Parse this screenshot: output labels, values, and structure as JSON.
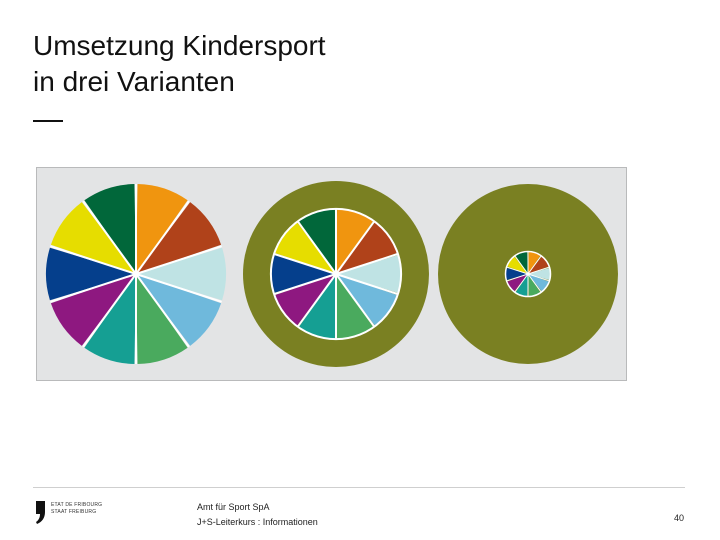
{
  "slide": {
    "title_line1": "Umsetzung Kindersport",
    "title_line2": "in drei Varianten"
  },
  "diagram": {
    "background_color": "#e3e4e5",
    "ring_color": "#7a8022",
    "segment_colors": [
      "#f0950f",
      "#b0421a",
      "#bfe3e4",
      "#6fb9dc",
      "#4aaa5e",
      "#159f93",
      "#8e1880",
      "#053f8c",
      "#e6dd00",
      "#01673a"
    ],
    "wheels": [
      {
        "name": "variant-full",
        "segments": 10,
        "inner_ratio": 1.0
      },
      {
        "name": "variant-medium",
        "segments": 10,
        "inner_ratio": 0.7
      },
      {
        "name": "variant-small",
        "segments": 10,
        "inner_ratio": 0.25
      }
    ]
  },
  "footer": {
    "logo_line1": "ETAT DE FRIBOURG",
    "logo_line2": "STAAT FREIBURG",
    "org": "Amt für Sport SpA",
    "course": "J+S-Leiterkurs : Informationen",
    "page_number": "40"
  }
}
